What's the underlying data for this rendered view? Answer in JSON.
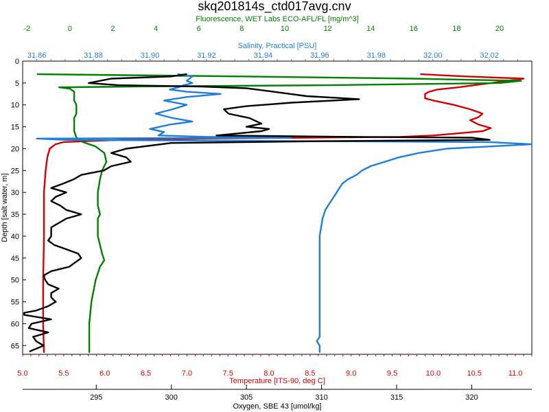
{
  "chart_data": {
    "type": "line",
    "title": "skq201814s_ctd017avg.cnv",
    "grid": false,
    "y_axis": {
      "label": "Depth [salt water, m]",
      "range": [
        0,
        67
      ],
      "inverted": true,
      "ticks": [
        0,
        5,
        10,
        15,
        20,
        25,
        30,
        35,
        40,
        45,
        50,
        55,
        60,
        65
      ]
    },
    "x_axes": [
      {
        "id": "fluorescence",
        "label": "Fluorescence, WET Labs ECO-AFL/FL [mg/m^3]",
        "position": "top",
        "color": "#008000",
        "range": [
          -2.2,
          21.5
        ],
        "ticks": [
          -2,
          0,
          2,
          4,
          6,
          8,
          10,
          12,
          14,
          16,
          18,
          20
        ],
        "decimals": 0
      },
      {
        "id": "salinity",
        "label": "Salinity, Practical [PSU]",
        "position": "top",
        "color": "#1f7fd6",
        "range": [
          31.855,
          32.035
        ],
        "ticks": [
          31.86,
          31.88,
          31.9,
          31.92,
          31.94,
          31.96,
          31.98,
          32.0,
          32.02
        ],
        "decimals": 2
      },
      {
        "id": "temperature",
        "label": "Temperature [ITS-90, deg C]",
        "position": "bottom",
        "color": "#d40000",
        "range": [
          5.0,
          11.2
        ],
        "ticks": [
          5.0,
          5.5,
          6.0,
          6.5,
          7.0,
          7.5,
          8.0,
          8.5,
          9.0,
          9.5,
          10.0,
          10.5,
          11.0
        ],
        "decimals": 1
      },
      {
        "id": "oxygen",
        "label": "Oxygen, SBE 43 [umol/kg]",
        "position": "bottom",
        "color": "#000000",
        "range": [
          290.1,
          324.0
        ],
        "ticks": [
          295,
          300,
          305,
          310,
          315,
          320
        ],
        "decimals": 0
      }
    ],
    "series": [
      {
        "axis": "temperature",
        "color": "#d40000",
        "points": [
          [
            9.85,
            3
          ],
          [
            10.4,
            3.5
          ],
          [
            11.1,
            4
          ],
          [
            10.9,
            4.5
          ],
          [
            10.7,
            5
          ],
          [
            10.5,
            5.5
          ],
          [
            10.3,
            6
          ],
          [
            10.05,
            6.5
          ],
          [
            9.95,
            7
          ],
          [
            9.9,
            7.5
          ],
          [
            9.9,
            8.5
          ],
          [
            10.0,
            9
          ],
          [
            10.25,
            10
          ],
          [
            10.45,
            11
          ],
          [
            10.6,
            12
          ],
          [
            10.55,
            12.8
          ],
          [
            10.45,
            13.5
          ],
          [
            10.55,
            14.5
          ],
          [
            10.7,
            15.3
          ],
          [
            10.6,
            16
          ],
          [
            10.3,
            16.5
          ],
          [
            10.0,
            17
          ],
          [
            9.6,
            17.3
          ],
          [
            8.5,
            17.5
          ],
          [
            7.2,
            17.7
          ],
          [
            6.2,
            18
          ],
          [
            5.5,
            18.5
          ],
          [
            5.4,
            19
          ],
          [
            5.33,
            20
          ],
          [
            5.3,
            22
          ],
          [
            5.28,
            25
          ],
          [
            5.26,
            30
          ],
          [
            5.26,
            40
          ],
          [
            5.25,
            50
          ],
          [
            5.25,
            60
          ],
          [
            5.26,
            66.5
          ]
        ]
      },
      {
        "axis": "fluorescence",
        "color": "#008000",
        "points": [
          [
            -1.5,
            3
          ],
          [
            8,
            3.5
          ],
          [
            16,
            4
          ],
          [
            21,
            4.5
          ],
          [
            20,
            5
          ],
          [
            12,
            5.5
          ],
          [
            3,
            5.8
          ],
          [
            -0.5,
            6
          ],
          [
            0,
            6.3
          ],
          [
            0.2,
            7
          ],
          [
            0.2,
            9
          ],
          [
            0.3,
            10
          ],
          [
            0.3,
            12
          ],
          [
            0.2,
            13
          ],
          [
            0.2,
            16
          ],
          [
            0.3,
            17.5
          ],
          [
            0.6,
            18.5
          ],
          [
            1.2,
            19.5
          ],
          [
            1.6,
            21
          ],
          [
            1.7,
            23
          ],
          [
            1.5,
            25
          ],
          [
            1.4,
            27
          ],
          [
            1.3,
            30
          ],
          [
            1.3,
            33
          ],
          [
            1.4,
            35
          ],
          [
            1.3,
            36
          ],
          [
            1.3,
            40
          ],
          [
            1.5,
            44
          ],
          [
            1.6,
            45.5
          ],
          [
            1.4,
            47
          ],
          [
            1.2,
            50
          ],
          [
            1.0,
            55
          ],
          [
            0.9,
            60
          ],
          [
            0.9,
            66.5
          ]
        ]
      },
      {
        "axis": "salinity",
        "color": "#1f7fd6",
        "points": [
          [
            31.91,
            3
          ],
          [
            31.915,
            3.5
          ],
          [
            31.913,
            4.5
          ],
          [
            31.915,
            5
          ],
          [
            31.912,
            5.5
          ],
          [
            31.91,
            6
          ],
          [
            31.907,
            6.5
          ],
          [
            31.913,
            7
          ],
          [
            31.925,
            7.5
          ],
          [
            31.913,
            8.2
          ],
          [
            31.905,
            9
          ],
          [
            31.913,
            10
          ],
          [
            31.908,
            11
          ],
          [
            31.902,
            12
          ],
          [
            31.908,
            13
          ],
          [
            31.915,
            13.8
          ],
          [
            31.907,
            14.5
          ],
          [
            31.9,
            15.5
          ],
          [
            31.905,
            16.2
          ],
          [
            31.903,
            17
          ],
          [
            31.92,
            17.3
          ],
          [
            31.95,
            17.5
          ],
          [
            31.86,
            17.7
          ],
          [
            31.87,
            18
          ],
          [
            32.02,
            18.5
          ],
          [
            32.035,
            19
          ],
          [
            32.02,
            19.5
          ],
          [
            32.005,
            20
          ],
          [
            31.995,
            21
          ],
          [
            31.988,
            22
          ],
          [
            31.983,
            23
          ],
          [
            31.978,
            24
          ],
          [
            31.975,
            25
          ],
          [
            31.973,
            26
          ],
          [
            31.97,
            27
          ],
          [
            31.968,
            28
          ],
          [
            31.966,
            30
          ],
          [
            31.964,
            32
          ],
          [
            31.962,
            34
          ],
          [
            31.961,
            36
          ],
          [
            31.96,
            40
          ],
          [
            31.96,
            45
          ],
          [
            31.96,
            50
          ],
          [
            31.96,
            55
          ],
          [
            31.96,
            60
          ],
          [
            31.96,
            63
          ],
          [
            31.959,
            64
          ],
          [
            31.96,
            65
          ],
          [
            31.96,
            66.5
          ]
        ]
      },
      {
        "axis": "oxygen",
        "color": "#000000",
        "points": [
          [
            301.0,
            3
          ],
          [
            300.0,
            3.5
          ],
          [
            296.0,
            4
          ],
          [
            294.5,
            5
          ],
          [
            296.5,
            5.5
          ],
          [
            302.0,
            5.8
          ],
          [
            305.0,
            6.2
          ],
          [
            306.8,
            7
          ],
          [
            309.0,
            8
          ],
          [
            312.5,
            8.7
          ],
          [
            308.0,
            9.5
          ],
          [
            305.0,
            10.3
          ],
          [
            303.5,
            11
          ],
          [
            303.8,
            12
          ],
          [
            305.2,
            13
          ],
          [
            306.0,
            14.3
          ],
          [
            305.0,
            15
          ],
          [
            306.5,
            15.5
          ],
          [
            306.0,
            16
          ],
          [
            304.5,
            16.5
          ],
          [
            303.0,
            17
          ],
          [
            312.0,
            17.3
          ],
          [
            320.0,
            17.5
          ],
          [
            321.2,
            18
          ],
          [
            310.0,
            18.3
          ],
          [
            300.0,
            18.7
          ],
          [
            297.0,
            20
          ],
          [
            296.0,
            21
          ],
          [
            297.0,
            22
          ],
          [
            297.3,
            23
          ],
          [
            296.0,
            24
          ],
          [
            295.5,
            25
          ],
          [
            294.0,
            26
          ],
          [
            293.5,
            27
          ],
          [
            292.8,
            28
          ],
          [
            292.0,
            29
          ],
          [
            293.0,
            30
          ],
          [
            292.3,
            31
          ],
          [
            292.0,
            32
          ],
          [
            292.6,
            33
          ],
          [
            293.0,
            34
          ],
          [
            294.0,
            35
          ],
          [
            293.0,
            36
          ],
          [
            292.5,
            37
          ],
          [
            292.0,
            38
          ],
          [
            292.0,
            39
          ],
          [
            292.0,
            40
          ],
          [
            291.8,
            41
          ],
          [
            292.2,
            42
          ],
          [
            293.0,
            43
          ],
          [
            293.8,
            44
          ],
          [
            294.0,
            45
          ],
          [
            293.6,
            46
          ],
          [
            293.2,
            47
          ],
          [
            292.0,
            48
          ],
          [
            291.5,
            49
          ],
          [
            291.6,
            50
          ],
          [
            291.8,
            51
          ],
          [
            292.5,
            52
          ],
          [
            292.0,
            53
          ],
          [
            292.0,
            54
          ],
          [
            292.3,
            55
          ],
          [
            291.8,
            56
          ],
          [
            291.0,
            57
          ],
          [
            290.2,
            57.5
          ],
          [
            290.2,
            58
          ],
          [
            292.0,
            59
          ],
          [
            290.7,
            60
          ],
          [
            290.5,
            61
          ],
          [
            291.8,
            62
          ],
          [
            290.8,
            63
          ],
          [
            291.0,
            64
          ],
          [
            291.5,
            65
          ],
          [
            290.6,
            66.3
          ]
        ]
      }
    ]
  }
}
